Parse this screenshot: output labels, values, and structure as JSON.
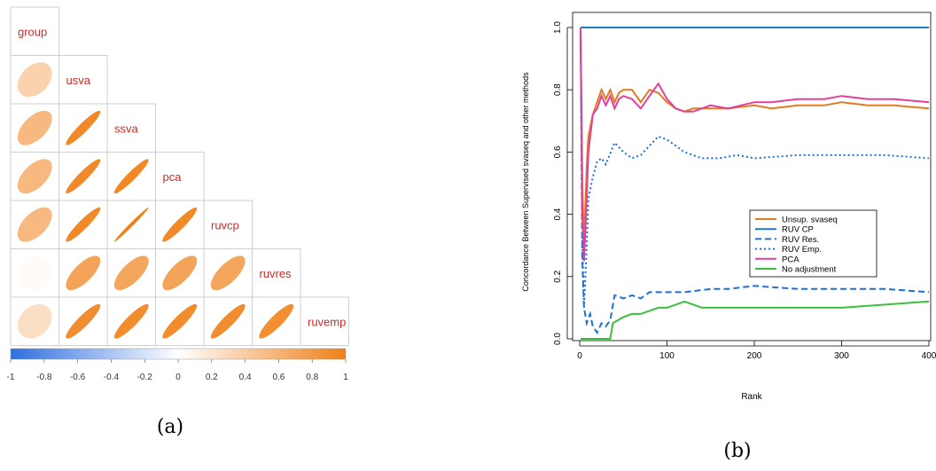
{
  "panel_labels": {
    "a": "(a)",
    "b": "(b)"
  },
  "chart_data": [
    {
      "type": "heatmap",
      "subtype": "correlation-ellipse-lower-triangle",
      "variables": [
        "group",
        "usva",
        "ssva",
        "pca",
        "ruvcp",
        "ruvres",
        "ruvemp"
      ],
      "correlations": [
        {
          "row": "usva",
          "col": "group",
          "r": 0.35
        },
        {
          "row": "ssva",
          "col": "group",
          "r": 0.55
        },
        {
          "row": "ssva",
          "col": "usva",
          "r": 0.93
        },
        {
          "row": "pca",
          "col": "group",
          "r": 0.55
        },
        {
          "row": "pca",
          "col": "usva",
          "r": 0.93
        },
        {
          "row": "pca",
          "col": "ssva",
          "r": 0.94
        },
        {
          "row": "ruvcp",
          "col": "group",
          "r": 0.55
        },
        {
          "row": "ruvcp",
          "col": "usva",
          "r": 0.93
        },
        {
          "row": "ruvcp",
          "col": "ssva",
          "r": 0.99
        },
        {
          "row": "ruvcp",
          "col": "pca",
          "r": 0.93
        },
        {
          "row": "ruvres",
          "col": "group",
          "r": 0.03
        },
        {
          "row": "ruvres",
          "col": "usva",
          "r": 0.72
        },
        {
          "row": "ruvres",
          "col": "ssva",
          "r": 0.7
        },
        {
          "row": "ruvres",
          "col": "pca",
          "r": 0.72
        },
        {
          "row": "ruvres",
          "col": "ruvcp",
          "r": 0.7
        },
        {
          "row": "ruvemp",
          "col": "group",
          "r": 0.25
        },
        {
          "row": "ruvemp",
          "col": "usva",
          "r": 0.9
        },
        {
          "row": "ruvemp",
          "col": "ssva",
          "r": 0.9
        },
        {
          "row": "ruvemp",
          "col": "pca",
          "r": 0.9
        },
        {
          "row": "ruvemp",
          "col": "ruvcp",
          "r": 0.9
        },
        {
          "row": "ruvemp",
          "col": "ruvres",
          "r": 0.88
        }
      ],
      "colorbar_ticks": [
        "-1",
        "-0.8",
        "-0.6",
        "-0.4",
        "-0.2",
        "0",
        "0.2",
        "0.4",
        "0.6",
        "0.8",
        "1"
      ],
      "color_range": [
        -1,
        1
      ],
      "colors": {
        "negative": "#2f6fe0",
        "zero": "#ffffff",
        "positive": "#f08018",
        "label": "#cc2a2a"
      }
    },
    {
      "type": "line",
      "xlabel": "Rank",
      "ylabel": "Concordance Between Supervised svaseq and other methods",
      "xlim": [
        0,
        400
      ],
      "ylim": [
        0,
        1
      ],
      "x_ticks": [
        "0",
        "100",
        "200",
        "300",
        "400"
      ],
      "y_ticks": [
        "0.0",
        "0.2",
        "0.4",
        "0.6",
        "0.8",
        "1.0"
      ],
      "legend_position": "right-middle",
      "series": [
        {
          "name": "Unsup. svaseq",
          "color": "#e07b20",
          "dash": "solid",
          "points": [
            [
              1,
              1.0
            ],
            [
              3,
              0.5
            ],
            [
              5,
              0.3
            ],
            [
              8,
              0.55
            ],
            [
              10,
              0.65
            ],
            [
              15,
              0.72
            ],
            [
              20,
              0.76
            ],
            [
              25,
              0.8
            ],
            [
              30,
              0.77
            ],
            [
              35,
              0.8
            ],
            [
              40,
              0.76
            ],
            [
              45,
              0.79
            ],
            [
              50,
              0.8
            ],
            [
              60,
              0.8
            ],
            [
              70,
              0.76
            ],
            [
              80,
              0.8
            ],
            [
              90,
              0.79
            ],
            [
              100,
              0.76
            ],
            [
              110,
              0.74
            ],
            [
              120,
              0.73
            ],
            [
              130,
              0.74
            ],
            [
              150,
              0.74
            ],
            [
              170,
              0.74
            ],
            [
              200,
              0.75
            ],
            [
              220,
              0.74
            ],
            [
              250,
              0.75
            ],
            [
              280,
              0.75
            ],
            [
              300,
              0.76
            ],
            [
              330,
              0.75
            ],
            [
              360,
              0.75
            ],
            [
              400,
              0.74
            ]
          ]
        },
        {
          "name": "RUV CP",
          "color": "#1f78c8",
          "dash": "solid",
          "points": [
            [
              1,
              1.0
            ],
            [
              400,
              1.0
            ]
          ]
        },
        {
          "name": "RUV Res.",
          "color": "#1f6fd6",
          "dash": "dashed",
          "points": [
            [
              1,
              1.0
            ],
            [
              3,
              0.25
            ],
            [
              5,
              0.1
            ],
            [
              8,
              0.05
            ],
            [
              12,
              0.08
            ],
            [
              15,
              0.04
            ],
            [
              20,
              0.02
            ],
            [
              25,
              0.05
            ],
            [
              30,
              0.04
            ],
            [
              35,
              0.06
            ],
            [
              40,
              0.14
            ],
            [
              50,
              0.13
            ],
            [
              60,
              0.14
            ],
            [
              70,
              0.13
            ],
            [
              80,
              0.15
            ],
            [
              100,
              0.15
            ],
            [
              120,
              0.15
            ],
            [
              150,
              0.16
            ],
            [
              170,
              0.16
            ],
            [
              200,
              0.17
            ],
            [
              250,
              0.16
            ],
            [
              300,
              0.16
            ],
            [
              350,
              0.16
            ],
            [
              400,
              0.15
            ]
          ]
        },
        {
          "name": "RUV Emp.",
          "color": "#1f6fd6",
          "dash": "dotted",
          "points": [
            [
              1,
              1.0
            ],
            [
              3,
              0.3
            ],
            [
              5,
              0.1
            ],
            [
              8,
              0.3
            ],
            [
              10,
              0.45
            ],
            [
              15,
              0.52
            ],
            [
              20,
              0.57
            ],
            [
              25,
              0.58
            ],
            [
              30,
              0.56
            ],
            [
              40,
              0.63
            ],
            [
              50,
              0.6
            ],
            [
              60,
              0.58
            ],
            [
              70,
              0.59
            ],
            [
              80,
              0.62
            ],
            [
              90,
              0.65
            ],
            [
              100,
              0.64
            ],
            [
              110,
              0.62
            ],
            [
              120,
              0.6
            ],
            [
              140,
              0.58
            ],
            [
              160,
              0.58
            ],
            [
              180,
              0.59
            ],
            [
              200,
              0.58
            ],
            [
              250,
              0.59
            ],
            [
              300,
              0.59
            ],
            [
              350,
              0.59
            ],
            [
              400,
              0.58
            ]
          ]
        },
        {
          "name": "PCA",
          "color": "#e0409a",
          "dash": "solid",
          "points": [
            [
              1,
              1.0
            ],
            [
              3,
              0.4
            ],
            [
              5,
              0.25
            ],
            [
              8,
              0.45
            ],
            [
              10,
              0.6
            ],
            [
              15,
              0.72
            ],
            [
              20,
              0.74
            ],
            [
              25,
              0.78
            ],
            [
              30,
              0.75
            ],
            [
              35,
              0.78
            ],
            [
              40,
              0.74
            ],
            [
              45,
              0.77
            ],
            [
              50,
              0.78
            ],
            [
              60,
              0.77
            ],
            [
              70,
              0.74
            ],
            [
              80,
              0.78
            ],
            [
              90,
              0.82
            ],
            [
              100,
              0.77
            ],
            [
              110,
              0.74
            ],
            [
              120,
              0.73
            ],
            [
              130,
              0.73
            ],
            [
              150,
              0.75
            ],
            [
              170,
              0.74
            ],
            [
              200,
              0.76
            ],
            [
              220,
              0.76
            ],
            [
              250,
              0.77
            ],
            [
              280,
              0.77
            ],
            [
              300,
              0.78
            ],
            [
              330,
              0.77
            ],
            [
              360,
              0.77
            ],
            [
              400,
              0.76
            ]
          ]
        },
        {
          "name": "No adjustment",
          "color": "#3cbf3c",
          "dash": "solid",
          "points": [
            [
              1,
              0.0
            ],
            [
              35,
              0.0
            ],
            [
              38,
              0.05
            ],
            [
              50,
              0.07
            ],
            [
              60,
              0.08
            ],
            [
              70,
              0.08
            ],
            [
              80,
              0.09
            ],
            [
              90,
              0.1
            ],
            [
              100,
              0.1
            ],
            [
              110,
              0.11
            ],
            [
              120,
              0.12
            ],
            [
              140,
              0.1
            ],
            [
              160,
              0.1
            ],
            [
              180,
              0.1
            ],
            [
              200,
              0.1
            ],
            [
              250,
              0.1
            ],
            [
              300,
              0.1
            ],
            [
              350,
              0.11
            ],
            [
              400,
              0.12
            ]
          ]
        }
      ]
    }
  ]
}
